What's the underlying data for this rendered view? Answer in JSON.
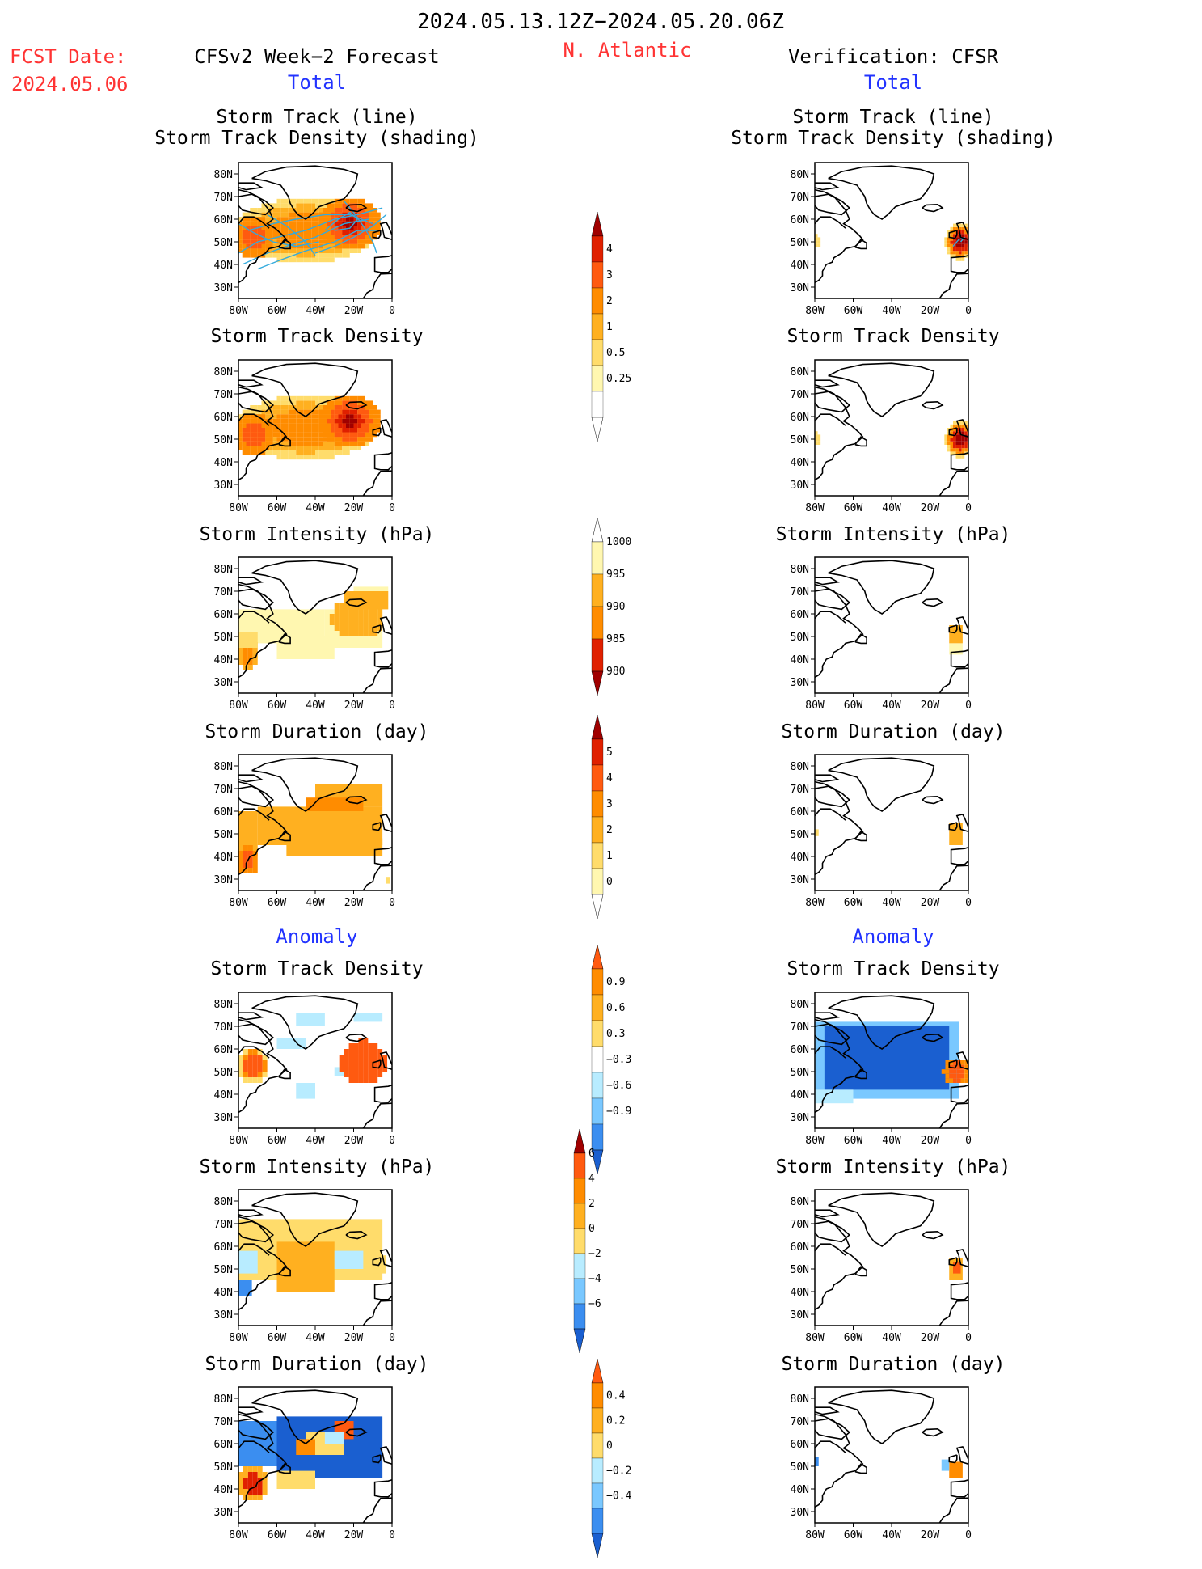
{
  "header": {
    "date_range": "2024.05.13.12Z−2024.05.20.06Z",
    "region": "N. Atlantic",
    "fcst_date_label": "FCST Date:",
    "fcst_date_value": "2024.05.06",
    "left_title": "CFSv2 Week−2 Forecast",
    "right_title": "Verification: CFSR",
    "total_label": "Total",
    "anomaly_label": "Anomaly"
  },
  "panel_titles": {
    "track_line": "Storm Track (line)",
    "track_shading": "Storm Track Density (shading)",
    "density": "Storm Track Density",
    "intensity": "Storm Intensity (hPa)",
    "duration": "Storm Duration (day)"
  },
  "axes": {
    "lat_labels": [
      "80N",
      "70N",
      "60N",
      "50N",
      "40N",
      "30N"
    ],
    "lon_labels": [
      "80W",
      "60W",
      "40W",
      "20W",
      "0"
    ]
  },
  "colorbars": {
    "density_total": [
      "4",
      "3",
      "2",
      "1",
      "0.5",
      "0.25"
    ],
    "intensity_total": [
      "1000",
      "995",
      "990",
      "985",
      "980"
    ],
    "duration_total": [
      "5",
      "4",
      "3",
      "2",
      "1",
      "0"
    ],
    "density_anom": [
      "0.9",
      "0.6",
      "0.3",
      "−0.3",
      "−0.6",
      "−0.9"
    ],
    "intensity_anom": [
      "6",
      "4",
      "2",
      "0",
      "−2",
      "−4",
      "−6"
    ],
    "duration_anom": [
      "0.4",
      "0.2",
      "0",
      "−0.2",
      "−0.4"
    ]
  },
  "colors": {
    "warm": [
      "#fff7b0",
      "#ffdc6b",
      "#ffb020",
      "#ff8c00",
      "#ff5a10",
      "#e02000",
      "#a00000"
    ],
    "cool": [
      "#b8ecff",
      "#7ac8ff",
      "#3b8ef0",
      "#1a5fd0"
    ],
    "track_line": "#33aadd",
    "title_red": "#ff3333",
    "title_blue": "#2233ff"
  }
}
